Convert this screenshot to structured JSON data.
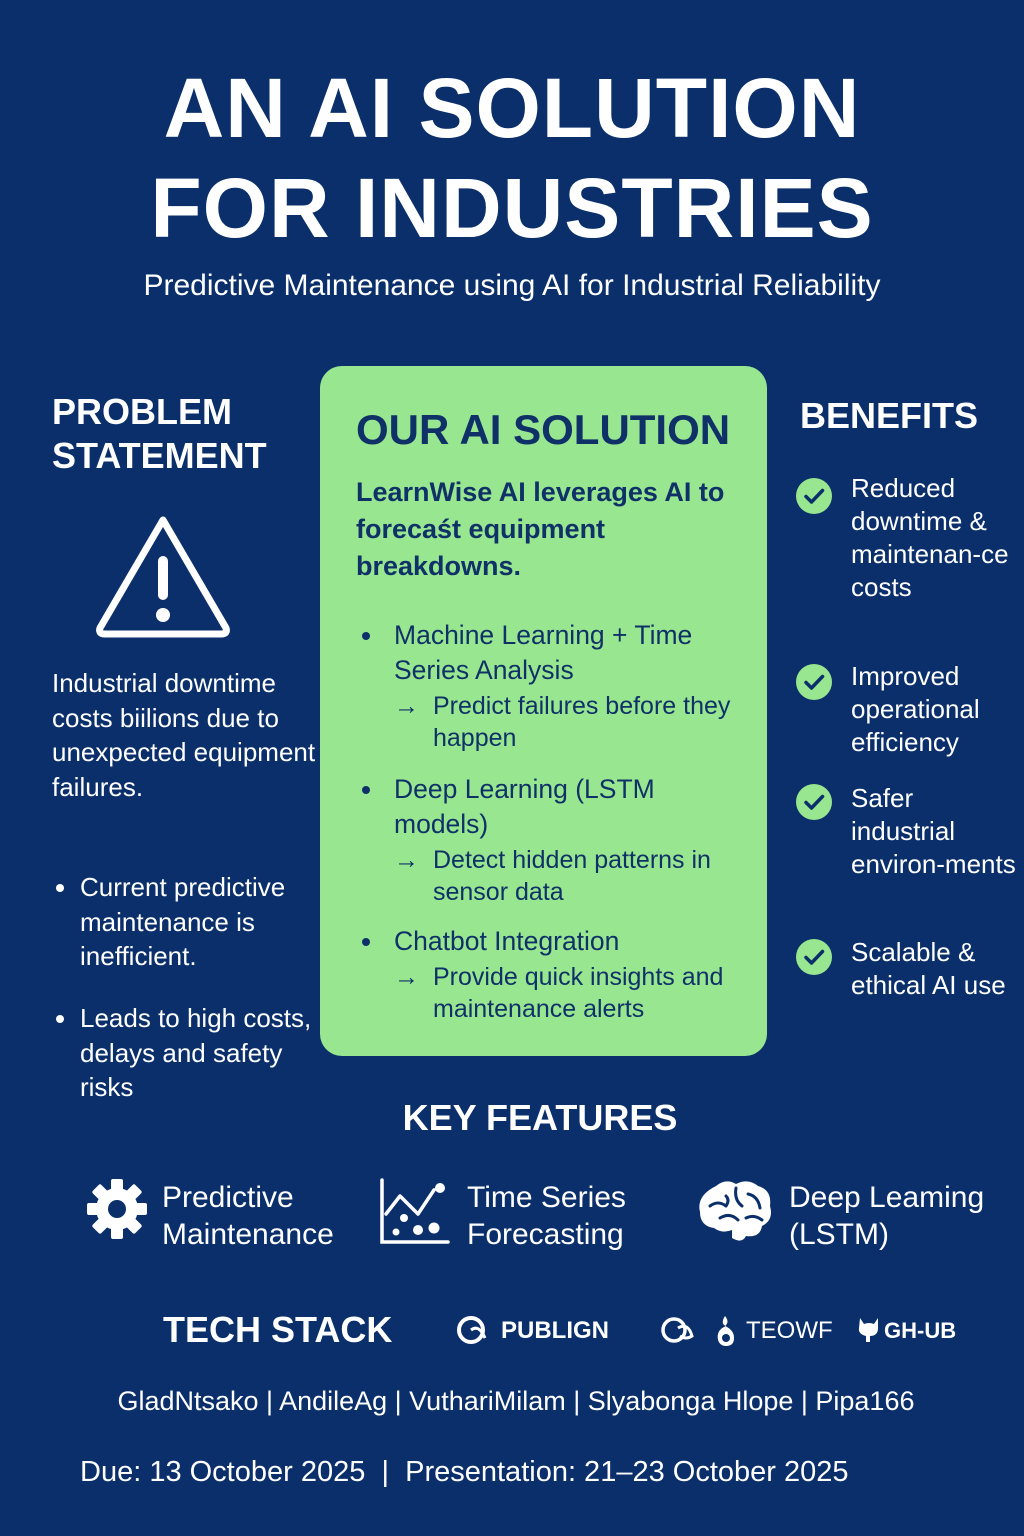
{
  "header": {
    "title_line1": "AN AI SOLUTION",
    "title_line2": "FOR INDUSTRIES",
    "subtitle": "Predictive Maintenance using AI for Industrial Reliability"
  },
  "problem": {
    "heading_line1": "PROBLEM",
    "heading_line2": "STATEMENT",
    "icon": "warning-triangle-icon",
    "text": "Industrial downtime costs biilions due to unexpected equipment failures.",
    "bullets": [
      "Current predictive maintenance is inefficient.",
      "Leads to high costs, delays and safety risks"
    ]
  },
  "solution": {
    "heading": "OUR AI SOLUTION",
    "intro": "LearnWise AI leverages AI to forecaśt equipment breakdowns.",
    "items": [
      {
        "title": "Machine Learning + Time Series Analysis",
        "detail": "Predict failures before they happen"
      },
      {
        "title": "Deep Learning (LSTM models)",
        "detail": "Detect hidden patterns in sensor data"
      },
      {
        "title": "Chatbot Integration",
        "detail": "Provide quick insights and maintenance alerts"
      }
    ],
    "arrow": "→"
  },
  "benefits": {
    "heading": "BENEFITS",
    "icon": "check-circle-icon",
    "items": [
      "Reduced downtime & maintenan-ce costs",
      "Improved operational efficiency",
      "Safer industrial environ-ments",
      "Scalable & ethical AI use"
    ]
  },
  "features": {
    "heading": "KEY FEATURES",
    "items": [
      {
        "icon": "gear-icon",
        "line1": "Predictive",
        "line2": "Maintenance"
      },
      {
        "icon": "chart-icon",
        "line1": "Time Series",
        "line2": "Forecasting"
      },
      {
        "icon": "brain-icon",
        "line1": "Deep Leaming",
        "line2": "(LSTM)"
      }
    ]
  },
  "tech_stack": {
    "heading": "TECH STACK",
    "items": [
      {
        "icon": "swirl-logo-icon",
        "label": "PUBLIGN"
      },
      {
        "icon": "python-logo-icon",
        "label": ""
      },
      {
        "icon": "flame-logo-icon",
        "label": "TEOWF"
      },
      {
        "icon": "octocat-logo-icon",
        "label": "GH-UB"
      }
    ]
  },
  "footer": {
    "team": "GladNtsako | AndileAg | VuthariMilam | Slyabonga Hlope | Pipa166",
    "dates": "Due: 13 October 2025  |  Presentation: 21–23 October 2025"
  },
  "colors": {
    "background": "#0a2f6b",
    "card": "#98e68f",
    "card_text": "#0f3168",
    "text": "#ffffff"
  }
}
